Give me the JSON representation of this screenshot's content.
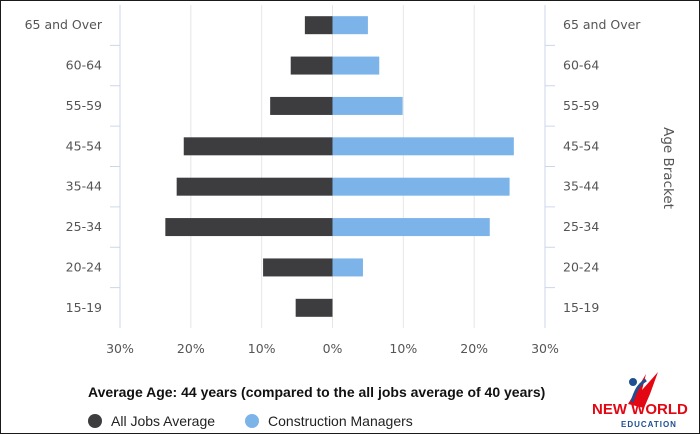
{
  "chart_data": {
    "type": "bar",
    "orientation": "horizontal-butterfly",
    "categories": [
      "65 and Over",
      "60-64",
      "55-59",
      "45-54",
      "35-44",
      "25-34",
      "20-24",
      "15-19"
    ],
    "series": [
      {
        "name": "All Jobs Average",
        "color": "#3d3d40",
        "side": "left",
        "values": [
          3.9,
          5.9,
          8.8,
          21.0,
          22.0,
          23.6,
          9.8,
          5.2
        ]
      },
      {
        "name": "Construction Managers",
        "color": "#7cb4ea",
        "side": "right",
        "values": [
          5.0,
          6.6,
          9.9,
          25.6,
          25.0,
          22.2,
          4.3,
          0
        ]
      }
    ],
    "xlim": [
      -30,
      30
    ],
    "xticks": [
      "30%",
      "20%",
      "10%",
      "0%",
      "10%",
      "20%",
      "30%"
    ],
    "ylabel_right": "Age Bracket",
    "grid": true,
    "legend_position": "bottom"
  },
  "subtitle": "Average Age: 44 years (compared to the all jobs average of 40 years)",
  "logo": {
    "line1": "NEW WORLD",
    "line2": "EDUCATION",
    "colors": [
      "#e30613",
      "#1d4f91"
    ]
  }
}
